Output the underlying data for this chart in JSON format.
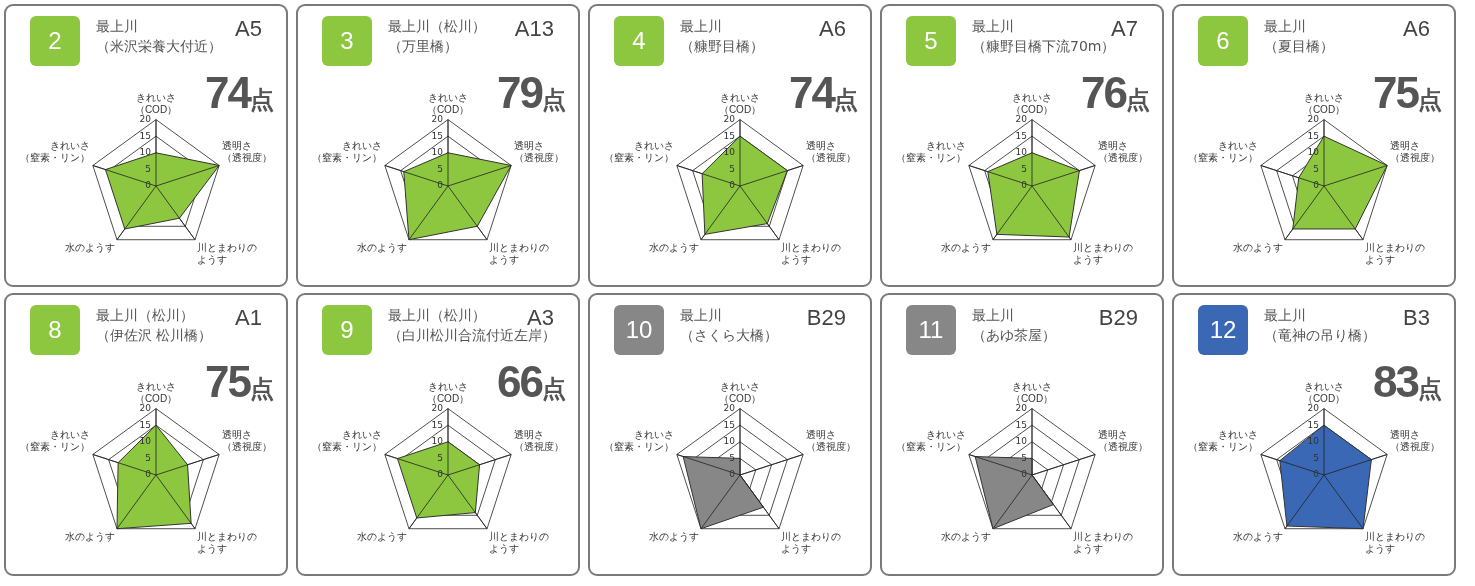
{
  "chart_data": [
    {
      "type": "radar",
      "title": "最上川",
      "subtitle": "（米沢栄養大付近）",
      "annotations": [
        "2",
        "A5",
        "74点"
      ],
      "categories": [
        "きれいさ（COD）",
        "透明さ（透視度）",
        "川とまわりのようす",
        "水のようす",
        "きれいさ（窒素・リン）"
      ],
      "series": [
        {
          "color": "#8dc63f",
          "values": [
            10,
            20,
            12,
            16,
            16
          ]
        }
      ],
      "ylim": [
        0,
        20
      ],
      "yticks": [
        0,
        5,
        10,
        15,
        20
      ],
      "grid": true
    },
    {
      "type": "radar",
      "title": "最上川（松川）",
      "subtitle": "（万里橋）",
      "annotations": [
        "3",
        "A13",
        "79点"
      ],
      "categories": [
        "きれいさ（COD）",
        "透明さ（透視度）",
        "川とまわりのようす",
        "水のようす",
        "きれいさ（窒素・リン）"
      ],
      "series": [
        {
          "color": "#8dc63f",
          "values": [
            10,
            20,
            15,
            20,
            14
          ]
        }
      ],
      "ylim": [
        0,
        20
      ],
      "yticks": [
        0,
        5,
        10,
        15,
        20
      ],
      "grid": true
    },
    {
      "type": "radar",
      "title": "最上川",
      "subtitle": "（糠野目橋）",
      "annotations": [
        "4",
        "A6",
        "74点"
      ],
      "categories": [
        "きれいさ（COD）",
        "透明さ（透視度）",
        "川とまわりのようす",
        "水のようす",
        "きれいさ（窒素・リン）"
      ],
      "series": [
        {
          "color": "#8dc63f",
          "values": [
            15,
            15,
            14,
            18,
            12
          ]
        }
      ],
      "ylim": [
        0,
        20
      ],
      "yticks": [
        0,
        5,
        10,
        15,
        20
      ],
      "grid": true
    },
    {
      "type": "radar",
      "title": "最上川",
      "subtitle": "（糠野目橋下流70m）",
      "annotations": [
        "5",
        "A7",
        "76点"
      ],
      "categories": [
        "きれいさ（COD）",
        "透明さ（透視度）",
        "川とまわりのようす",
        "水のようす",
        "きれいさ（窒素・リン）"
      ],
      "series": [
        {
          "color": "#8dc63f",
          "values": [
            10,
            15,
            19,
            18,
            14
          ]
        }
      ],
      "ylim": [
        0,
        20
      ],
      "yticks": [
        0,
        5,
        10,
        15,
        20
      ],
      "grid": true
    },
    {
      "type": "radar",
      "title": "最上川",
      "subtitle": "（夏目橋）",
      "annotations": [
        "6",
        "A6",
        "75点"
      ],
      "categories": [
        "きれいさ（COD）",
        "透明さ（透視度）",
        "川とまわりのようす",
        "水のようす",
        "きれいさ（窒素・リン）"
      ],
      "series": [
        {
          "color": "#8dc63f",
          "values": [
            15,
            20,
            16,
            16,
            8
          ]
        }
      ],
      "ylim": [
        0,
        20
      ],
      "yticks": [
        0,
        5,
        10,
        15,
        20
      ],
      "grid": true
    },
    {
      "type": "radar",
      "title": "最上川（松川）",
      "subtitle": "（伊佐沢 松川橋）",
      "annotations": [
        "8",
        "A1",
        "75点"
      ],
      "categories": [
        "きれいさ（COD）",
        "透明さ（透視度）",
        "川とまわりのようす",
        "水のようす",
        "きれいさ（窒素・リン）"
      ],
      "series": [
        {
          "color": "#8dc63f",
          "values": [
            15,
            10,
            18,
            20,
            12
          ]
        }
      ],
      "ylim": [
        0,
        20
      ],
      "yticks": [
        0,
        5,
        10,
        15,
        20
      ],
      "grid": true
    },
    {
      "type": "radar",
      "title": "最上川（松川）",
      "subtitle": "（白川松川合流付近左岸）",
      "annotations": [
        "9",
        "A3",
        "66点"
      ],
      "categories": [
        "きれいさ（COD）",
        "透明さ（透視度）",
        "川とまわりのようす",
        "水のようす",
        "きれいさ（窒素・リン）"
      ],
      "series": [
        {
          "color": "#8dc63f",
          "values": [
            10,
            10,
            14,
            16,
            16
          ]
        }
      ],
      "ylim": [
        0,
        20
      ],
      "yticks": [
        0,
        5,
        10,
        15,
        20
      ],
      "grid": true
    },
    {
      "type": "radar",
      "title": "最上川",
      "subtitle": "（さくら大橋）",
      "annotations": [
        "10",
        "B29"
      ],
      "categories": [
        "きれいさ（COD）",
        "透明さ（透視度）",
        "川とまわりのようす",
        "水のようす",
        "きれいさ（窒素・リン）"
      ],
      "series": [
        {
          "color": "#878787",
          "values": [
            5,
            0,
            12,
            20,
            18
          ]
        }
      ],
      "ylim": [
        0,
        20
      ],
      "yticks": [
        0,
        5,
        10,
        15,
        20
      ],
      "grid": true
    },
    {
      "type": "radar",
      "title": "最上川",
      "subtitle": "（あゆ茶屋）",
      "annotations": [
        "11",
        "B29"
      ],
      "categories": [
        "きれいさ（COD）",
        "透明さ（透視度）",
        "川とまわりのようす",
        "水のようす",
        "きれいさ（窒素・リン）"
      ],
      "series": [
        {
          "color": "#878787",
          "values": [
            5,
            0,
            11,
            20,
            18
          ]
        }
      ],
      "ylim": [
        0,
        20
      ],
      "yticks": [
        0,
        5,
        10,
        15,
        20
      ],
      "grid": true
    },
    {
      "type": "radar",
      "title": "最上川",
      "subtitle": "（竜神の吊り橋）",
      "annotations": [
        "12",
        "B3",
        "83点"
      ],
      "categories": [
        "きれいさ（COD）",
        "透明さ（透視度）",
        "川とまわりのようす",
        "水のようす",
        "きれいさ（窒素・リン）"
      ],
      "series": [
        {
          "color": "#3a68b4",
          "values": [
            15,
            15,
            20,
            19,
            14
          ]
        }
      ],
      "ylim": [
        0,
        20
      ],
      "yticks": [
        0,
        5,
        10,
        15,
        20
      ],
      "grid": true
    }
  ]
}
